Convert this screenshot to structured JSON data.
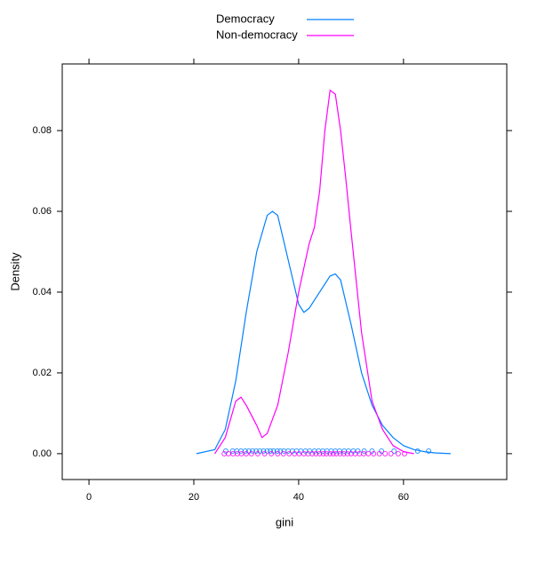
{
  "chart_data": {
    "type": "density",
    "xlabel": "gini",
    "ylabel": "Density",
    "xlim": [
      -5.1,
      79.7
    ],
    "ylim": [
      -0.0064,
      0.0965
    ],
    "xticks": [
      0,
      20,
      40,
      60
    ],
    "yticks": [
      {
        "value": 0,
        "label": "0.00"
      },
      {
        "value": 0.02,
        "label": "0.02"
      },
      {
        "value": 0.04,
        "label": "0.04"
      },
      {
        "value": 0.06,
        "label": "0.06"
      },
      {
        "value": 0.08,
        "label": "0.08"
      }
    ],
    "series": [
      {
        "name": "Democracy",
        "color": "#0080ff",
        "x": [
          20.5,
          24,
          26,
          28,
          30,
          32,
          34,
          35,
          36,
          38,
          40,
          41,
          42,
          44,
          46,
          47,
          48,
          50,
          52,
          54,
          56,
          58,
          60,
          62,
          64,
          66,
          69
        ],
        "values": [
          0,
          0.001,
          0.006,
          0.018,
          0.035,
          0.05,
          0.059,
          0.06,
          0.059,
          0.048,
          0.037,
          0.035,
          0.036,
          0.04,
          0.044,
          0.0445,
          0.043,
          0.032,
          0.02,
          0.012,
          0.007,
          0.004,
          0.002,
          0.001,
          0.0005,
          0.0002,
          0
        ],
        "points": [
          26.1,
          27.4,
          28.2,
          29,
          29.8,
          30.5,
          31.2,
          31.9,
          32.6,
          33.3,
          34,
          34.6,
          35.2,
          35.9,
          36.5,
          37.2,
          38,
          38.8,
          39.6,
          40.4,
          41.3,
          42.1,
          43,
          43.8,
          44.6,
          45.4,
          46.2,
          47,
          47.8,
          48.7,
          49.5,
          50.4,
          51.3,
          52.5,
          54,
          55.8,
          58.2,
          62.7,
          64.8
        ]
      },
      {
        "name": "Non-democracy",
        "color": "#ff00ff",
        "x": [
          24,
          26,
          28,
          29,
          30,
          32,
          33,
          34,
          36,
          38,
          40,
          42,
          43,
          44,
          45,
          46,
          47,
          48,
          49,
          50,
          52,
          54,
          56,
          58,
          60,
          62
        ],
        "values": [
          0,
          0.004,
          0.013,
          0.014,
          0.012,
          0.007,
          0.004,
          0.005,
          0.012,
          0.025,
          0.04,
          0.052,
          0.056,
          0.065,
          0.08,
          0.09,
          0.089,
          0.08,
          0.068,
          0.055,
          0.03,
          0.013,
          0.006,
          0.002,
          0.0005,
          0
        ],
        "points": [
          25.8,
          26.6,
          27.5,
          28.3,
          29.1,
          30,
          31,
          32.2,
          33.5,
          34.8,
          36,
          37.1,
          38.2,
          39.2,
          40.1,
          41,
          41.8,
          42.6,
          43.3,
          44,
          44.7,
          45.3,
          46,
          46.6,
          47.2,
          47.9,
          48.6,
          49.3,
          50,
          50.8,
          51.6,
          52.4,
          53.3,
          54.3,
          55.4,
          56.5,
          57.6,
          59,
          60.2
        ]
      }
    ]
  }
}
